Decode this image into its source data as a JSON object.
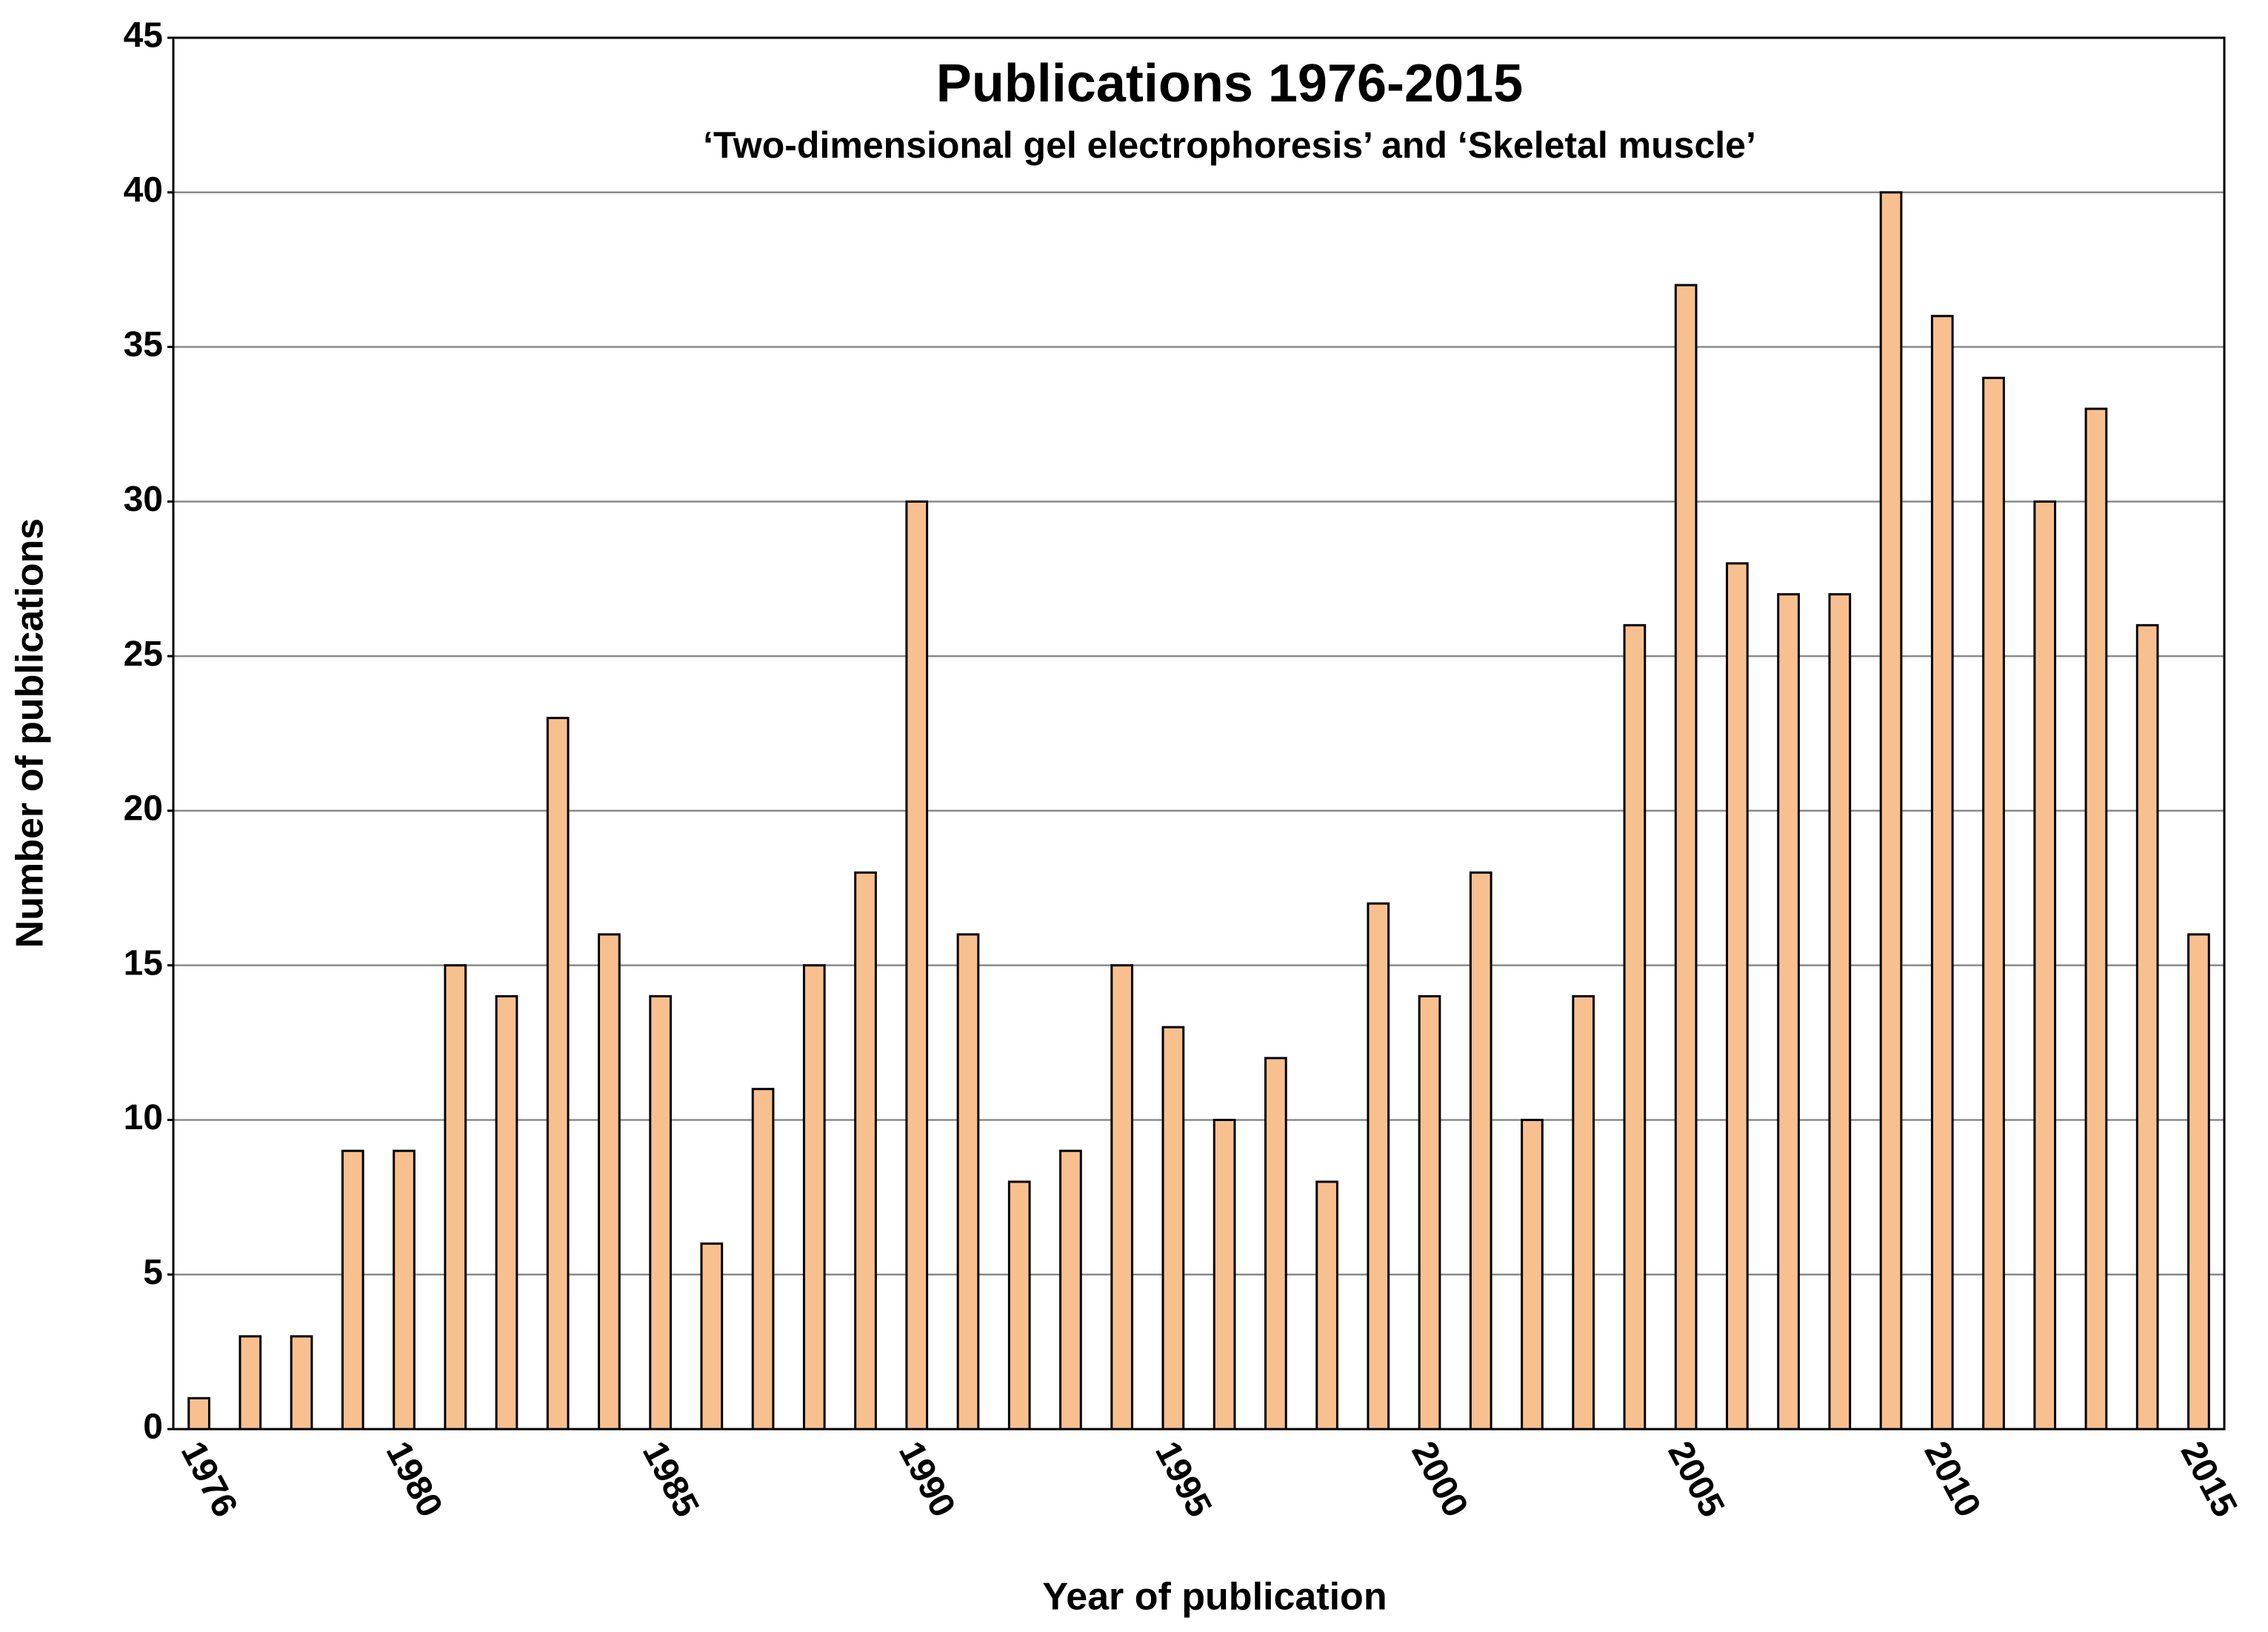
{
  "chart_data": {
    "type": "bar",
    "title": "Publications 1976-2015",
    "subtitle": "‘Two-dimensional gel electrophoresis’ and ‘Skeletal muscle’",
    "x_label": "Year of publication",
    "y_label": "Number of publications",
    "categories": [
      "1976",
      null,
      null,
      null,
      "1980",
      null,
      null,
      null,
      null,
      "1985",
      null,
      null,
      null,
      null,
      "1990",
      null,
      null,
      null,
      null,
      "1995",
      null,
      null,
      null,
      null,
      "2000",
      null,
      null,
      null,
      null,
      "2005",
      null,
      null,
      null,
      null,
      "2010",
      null,
      null,
      null,
      null,
      "2015"
    ],
    "values": [
      1,
      3,
      3,
      9,
      9,
      15,
      14,
      23,
      16,
      14,
      6,
      11,
      15,
      18,
      30,
      16,
      8,
      9,
      15,
      13,
      10,
      12,
      8,
      17,
      14,
      18,
      10,
      14,
      26,
      37,
      28,
      27,
      27,
      40,
      36,
      34,
      30,
      33,
      26,
      16
    ],
    "color": "#f9c08f",
    "ylim": [
      0,
      45
    ],
    "yticks": [
      0,
      5,
      10,
      15,
      20,
      25,
      30,
      35,
      40,
      45
    ],
    "grid": true
  }
}
